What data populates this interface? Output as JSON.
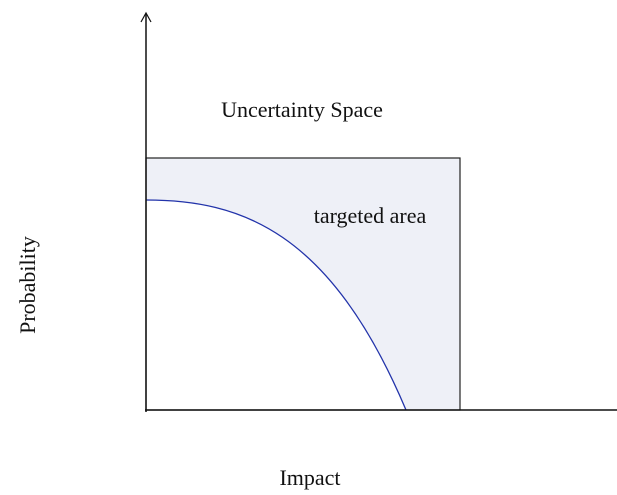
{
  "labels": {
    "space": "Uncertainty Space",
    "area": "targeted area",
    "y_axis": "Probability",
    "x_axis": "Impact"
  }
}
